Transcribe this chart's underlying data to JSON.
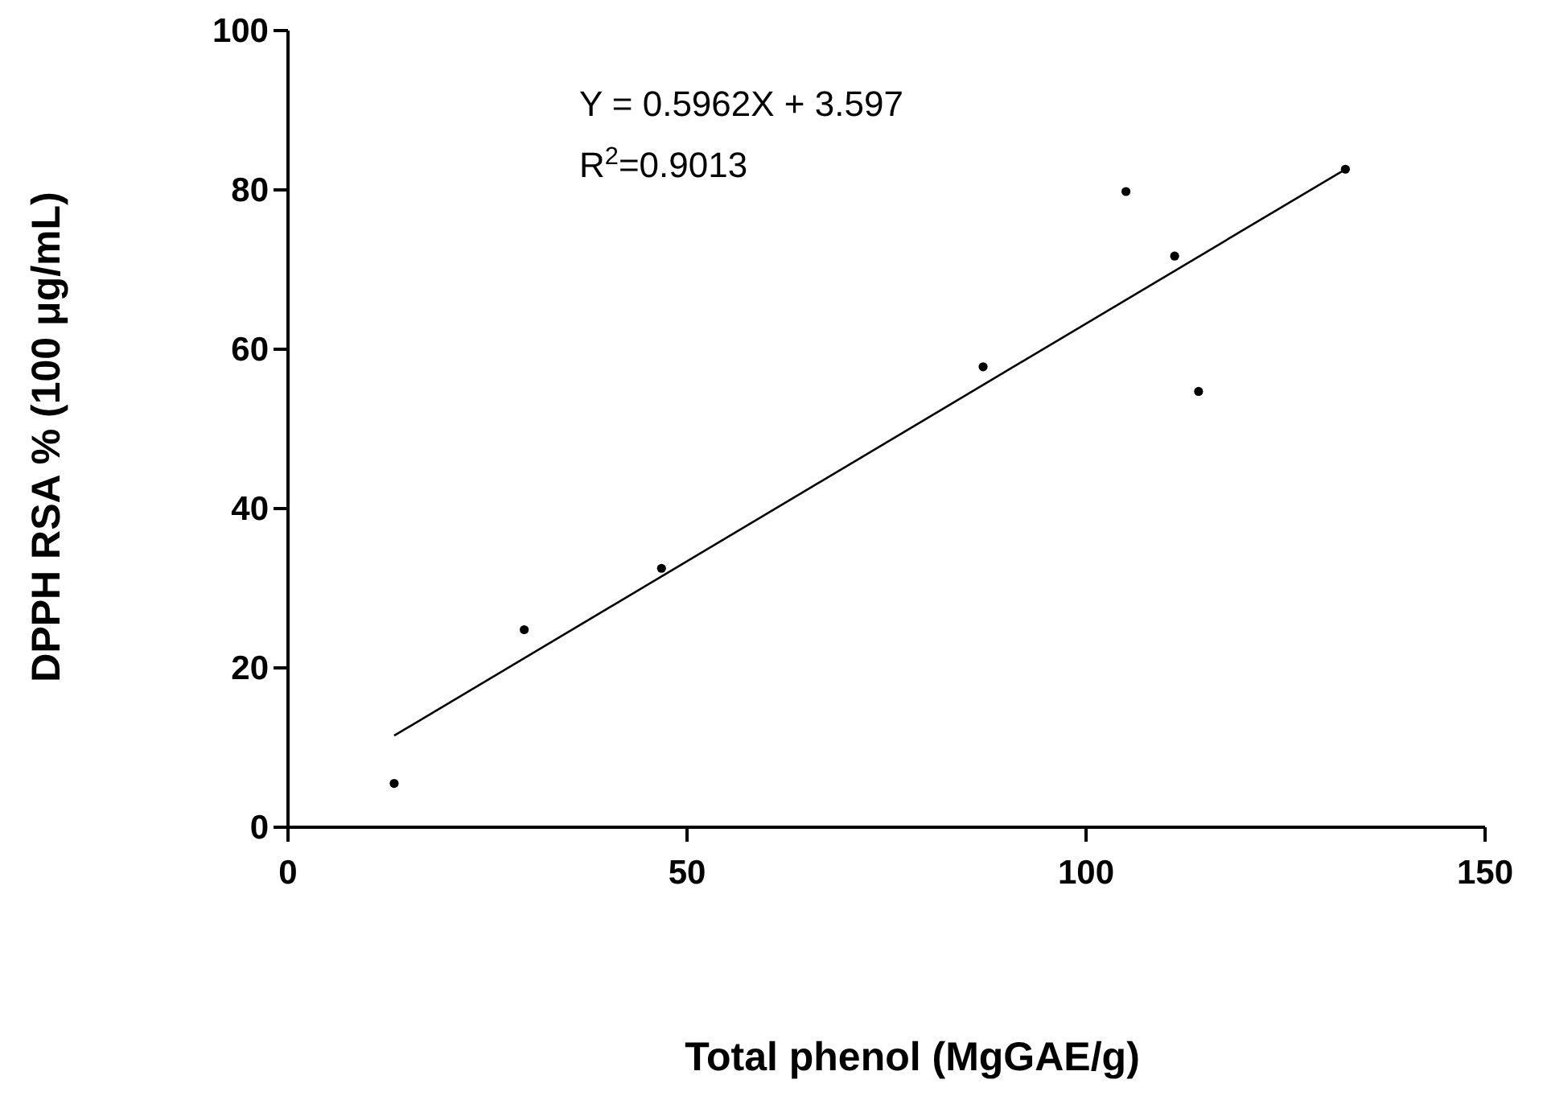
{
  "chart_data": {
    "type": "scatter",
    "xlabel": "Total phenol (MgGAE/g)",
    "ylabel": "DPPH RSA % (100 μg/mL)",
    "annotations": [
      "Y = 0.5962X + 3.597",
      "R$^{2}$=0.9013"
    ],
    "xlim": [
      0,
      150
    ],
    "xticks": [
      0,
      50,
      100,
      150
    ],
    "ylim": [
      0,
      100
    ],
    "yticks": [
      0,
      20,
      40,
      60,
      80,
      100
    ],
    "grid": false,
    "marker": "circle",
    "series": [
      {
        "color": "#000000",
        "x": [
          13.3,
          29.6,
          46.8,
          87.1,
          105.0,
          111.1,
          114.1,
          132.5
        ],
        "values": [
          5.5,
          24.8,
          32.5,
          57.8,
          79.8,
          71.7,
          54.7,
          82.6
        ]
      },
      {
        "type": "line",
        "color": "#000000",
        "marker": "none",
        "line_style": "solid",
        "x": [
          13.3,
          132.5
        ],
        "values": [
          11.5,
          82.6
        ]
      }
    ]
  }
}
